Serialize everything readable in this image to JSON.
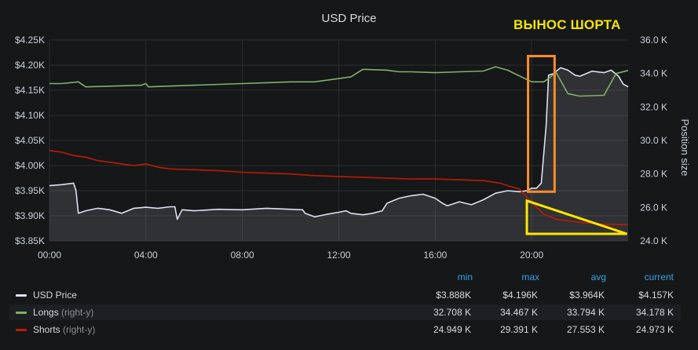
{
  "chart_data": {
    "type": "line",
    "title": "USD Price",
    "annotation": "ВЫНОС ШОРТА",
    "x_ticks": [
      "00:00",
      "04:00",
      "08:00",
      "12:00",
      "16:00",
      "20:00"
    ],
    "y_left": {
      "ticks": [
        "$3.85K",
        "$3.90K",
        "$3.95K",
        "$4.00K",
        "$4.05K",
        "$4.10K",
        "$4.15K",
        "$4.20K",
        "$4.25K"
      ],
      "range": [
        3850,
        4250
      ],
      "unit": "$"
    },
    "y_right": {
      "label": "Position size",
      "ticks": [
        "24.0 K",
        "26.0 K",
        "28.0 K",
        "30.0 K",
        "32.0 K",
        "34.0 K",
        "36.0 K"
      ],
      "range": [
        24000,
        36000
      ]
    },
    "x_range_hours": [
      0,
      24
    ],
    "grid": true,
    "series": [
      {
        "name": "USD Price",
        "axis": "left",
        "color": "#dfe0f0",
        "fill": true,
        "points": [
          [
            0,
            3960
          ],
          [
            0.5,
            3962
          ],
          [
            1,
            3965
          ],
          [
            1.1,
            3950
          ],
          [
            1.2,
            3905
          ],
          [
            1.5,
            3910
          ],
          [
            2,
            3915
          ],
          [
            2.5,
            3912
          ],
          [
            3,
            3905
          ],
          [
            3.5,
            3915
          ],
          [
            4,
            3917
          ],
          [
            4.5,
            3915
          ],
          [
            5,
            3918
          ],
          [
            5.2,
            3918
          ],
          [
            5.3,
            3893
          ],
          [
            5.5,
            3912
          ],
          [
            6,
            3910
          ],
          [
            7,
            3913
          ],
          [
            8,
            3912
          ],
          [
            9,
            3915
          ],
          [
            10,
            3913
          ],
          [
            10.5,
            3912
          ],
          [
            10.6,
            3905
          ],
          [
            11,
            3898
          ],
          [
            11.5,
            3903
          ],
          [
            12,
            3907
          ],
          [
            12.3,
            3910
          ],
          [
            12.5,
            3905
          ],
          [
            13,
            3902
          ],
          [
            13.4,
            3905
          ],
          [
            13.8,
            3910
          ],
          [
            14,
            3925
          ],
          [
            14.5,
            3935
          ],
          [
            15,
            3940
          ],
          [
            15.5,
            3943
          ],
          [
            16,
            3935
          ],
          [
            16.3,
            3925
          ],
          [
            16.5,
            3920
          ],
          [
            17,
            3928
          ],
          [
            17.5,
            3922
          ],
          [
            18,
            3932
          ],
          [
            18.5,
            3945
          ],
          [
            19,
            3950
          ],
          [
            19.5,
            3948
          ],
          [
            19.8,
            3950
          ],
          [
            20,
            3955
          ],
          [
            20.2,
            3955
          ],
          [
            20.4,
            3965
          ],
          [
            20.6,
            4080
          ],
          [
            20.7,
            4180
          ],
          [
            20.9,
            4183
          ],
          [
            21.2,
            4195
          ],
          [
            21.5,
            4190
          ],
          [
            21.8,
            4180
          ],
          [
            22,
            4178
          ],
          [
            22.5,
            4188
          ],
          [
            23,
            4185
          ],
          [
            23.3,
            4190
          ],
          [
            23.6,
            4178
          ],
          [
            23.8,
            4162
          ],
          [
            24,
            4157
          ]
        ]
      },
      {
        "name": "Longs",
        "axis": "right",
        "color": "#7eb26d",
        "points": [
          [
            0,
            33.4
          ],
          [
            0.5,
            33.4
          ],
          [
            1.2,
            33.5
          ],
          [
            1.5,
            33.2
          ],
          [
            3.8,
            33.3
          ],
          [
            4.0,
            33.4
          ],
          [
            4.1,
            33.2
          ],
          [
            6,
            33.3
          ],
          [
            8,
            33.4
          ],
          [
            9,
            33.45
          ],
          [
            10,
            33.5
          ],
          [
            11,
            33.5
          ],
          [
            12,
            33.7
          ],
          [
            12.5,
            33.8
          ],
          [
            13,
            34.25
          ],
          [
            14,
            34.2
          ],
          [
            14.5,
            34.1
          ],
          [
            15,
            34.1
          ],
          [
            16,
            34.05
          ],
          [
            17,
            34.1
          ],
          [
            18,
            34.15
          ],
          [
            18.5,
            34.4
          ],
          [
            19,
            34.2
          ],
          [
            20,
            33.5
          ],
          [
            20.5,
            33.5
          ],
          [
            20.8,
            33.8
          ],
          [
            21.0,
            34.1
          ],
          [
            21.5,
            32.8
          ],
          [
            22,
            32.65
          ],
          [
            23,
            32.7
          ],
          [
            23.5,
            34.0
          ],
          [
            24,
            34.18
          ]
        ]
      },
      {
        "name": "Shorts",
        "axis": "right",
        "color": "#bf1b00",
        "points": [
          [
            0,
            29.4
          ],
          [
            0.5,
            29.3
          ],
          [
            1,
            29.1
          ],
          [
            1.5,
            29.0
          ],
          [
            2,
            28.8
          ],
          [
            3,
            28.6
          ],
          [
            3.5,
            28.5
          ],
          [
            4,
            28.6
          ],
          [
            4.5,
            28.4
          ],
          [
            5,
            28.3
          ],
          [
            6,
            28.25
          ],
          [
            7,
            28.2
          ],
          [
            8,
            28.1
          ],
          [
            10,
            28.0
          ],
          [
            11,
            27.9
          ],
          [
            12,
            27.85
          ],
          [
            13,
            27.8
          ],
          [
            14,
            27.75
          ],
          [
            15,
            27.7
          ],
          [
            16,
            27.7
          ],
          [
            17,
            27.65
          ],
          [
            18,
            27.6
          ],
          [
            18.7,
            27.45
          ],
          [
            19,
            27.3
          ],
          [
            19.5,
            27.1
          ],
          [
            20,
            26.3
          ],
          [
            20.5,
            25.6
          ],
          [
            21,
            25.3
          ],
          [
            22,
            25.1
          ],
          [
            23,
            25.0
          ],
          [
            24,
            24.97
          ]
        ]
      }
    ],
    "legend": {
      "headers": [
        "min",
        "max",
        "avg",
        "current"
      ],
      "rows": [
        {
          "name": "USD Price",
          "axis": "",
          "color": "#dfe0f0",
          "values": [
            "$3.888K",
            "$4.196K",
            "$3.964K",
            "$4.157K"
          ]
        },
        {
          "name": "Longs",
          "axis": "(right-y)",
          "color": "#7eb26d",
          "values": [
            "32.708 K",
            "34.467 K",
            "33.794 K",
            "34.178 K"
          ]
        },
        {
          "name": "Shorts",
          "axis": "(right-y)",
          "color": "#bf1b00",
          "values": [
            "24.949 K",
            "29.391 K",
            "27.553 K",
            "24.973 K"
          ]
        }
      ]
    },
    "highlight_colors": {
      "box": "#ff8c2a",
      "triangle": "#ffe600"
    }
  }
}
